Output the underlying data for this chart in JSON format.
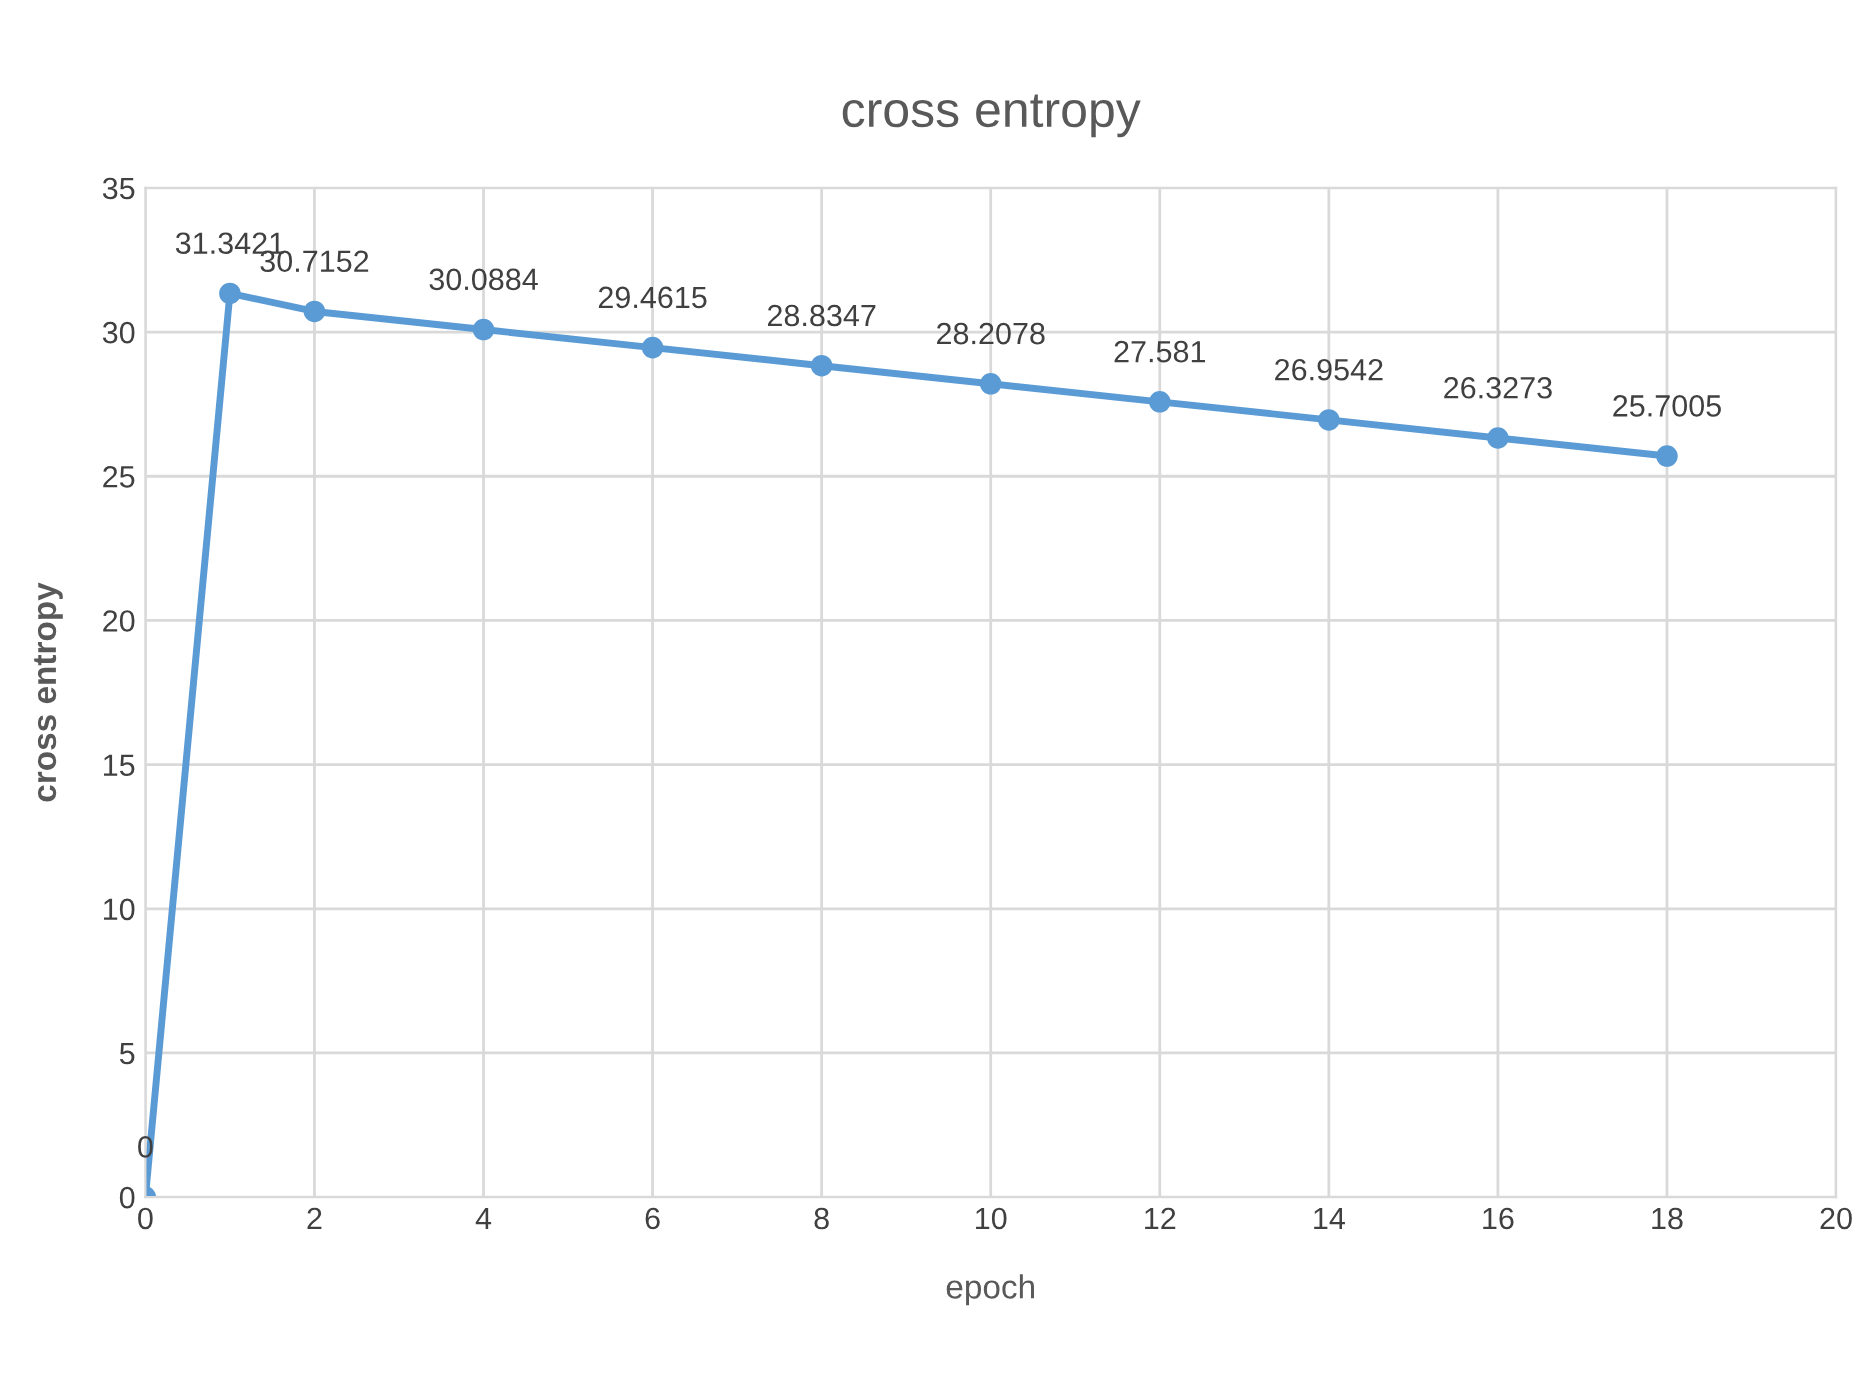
{
  "chart_data": {
    "type": "line",
    "title": "cross entropy",
    "xlabel": "epoch",
    "ylabel": "cross entropy",
    "x": [
      0,
      1,
      2,
      4,
      6,
      8,
      10,
      12,
      14,
      16,
      18
    ],
    "series": [
      {
        "color": "#5b9bd5",
        "values": [
          0,
          31.3421,
          30.7152,
          30.0884,
          29.4615,
          28.8347,
          28.2078,
          27.581,
          26.9542,
          26.3273,
          25.7005
        ]
      }
    ],
    "xlim": [
      0,
      20
    ],
    "xticks": [
      0,
      2,
      4,
      6,
      8,
      10,
      12,
      14,
      16,
      18,
      20
    ],
    "ylim": [
      0,
      35
    ],
    "yticks": [
      0,
      5,
      10,
      15,
      20,
      25,
      30,
      35
    ],
    "grid": true,
    "marker": "circle",
    "line_style": "solid",
    "data_labels": true,
    "legend": false
  }
}
